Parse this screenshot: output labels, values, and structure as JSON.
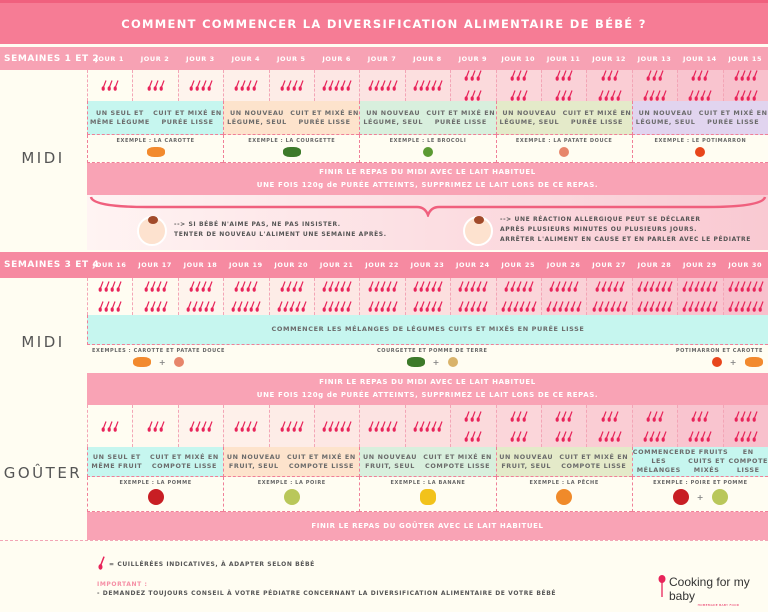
{
  "title": "COMMENT COMMENCER LA DIVERSIFICATION ALIMENTAIRE DE BÉBÉ ?",
  "colors": {
    "title_bg": "#f67c95",
    "header_bg": "#f7a2b4",
    "spoon": "#e8245a",
    "lait_bg": "#f9a3b5"
  },
  "weeks12": {
    "label": "SEMAINES 1 ET 2",
    "days": [
      "JOUR 1",
      "JOUR 2",
      "JOUR 3",
      "JOUR 4",
      "JOUR 5",
      "JOUR 6",
      "JOUR 7",
      "JOUR 8",
      "JOUR 9",
      "JOUR 10",
      "JOUR 11",
      "JOUR 12",
      "JOUR 13",
      "JOUR 14",
      "JOUR 15"
    ],
    "midi": {
      "label": "MIDI",
      "spoons": [
        3,
        3,
        4,
        4,
        4,
        5,
        5,
        5,
        6,
        6,
        6,
        7,
        7,
        7,
        8
      ],
      "steps": [
        {
          "text": "UN SEUL ET MÊME LÉGUME\nCUIT ET MIXÉ EN PURÉE LISSE",
          "example": "EXEMPLE : LA CAROTTE",
          "food": [
            "carrot"
          ],
          "color": "#c6f6ef"
        },
        {
          "text": "UN NOUVEAU LÉGUME, SEUL\nCUIT ET MIXÉ EN PURÉE LISSE",
          "example": "EXEMPLE : LA COURGETTE",
          "food": [
            "zucchini"
          ],
          "color": "#fde3cc"
        },
        {
          "text": "UN NOUVEAU LÉGUME, SEUL\nCUIT ET MIXÉ EN PURÉE LISSE",
          "example": "EXEMPLE : LE BROCOLI",
          "food": [
            "broccoli"
          ],
          "color": "#d8efdd"
        },
        {
          "text": "UN NOUVEAU LÉGUME, SEUL\nCUIT ET MIXÉ EN PURÉE LISSE",
          "example": "EXEMPLE : LA PATATE DOUCE",
          "food": [
            "sweet-potato"
          ],
          "color": "#e4eac9"
        },
        {
          "text": "UN NOUVEAU LÉGUME, SEUL\nCUIT ET MIXÉ EN PURÉE LISSE",
          "example": "EXEMPLE : LE POTIMARRON",
          "food": [
            "pumpkin"
          ],
          "color": "#e1d4ef"
        }
      ],
      "lait": [
        "FINIR LE REPAS DU MIDI AVEC LE LAIT HABITUEL",
        "UNE FOIS 120g de PURÉE ATTEINTS, SUPPRIMEZ LE LAIT LORS DE CE REPAS."
      ]
    },
    "tips": [
      {
        "icon": "sad-baby-icon",
        "lines": [
          "--> SI BÉBÉ N'AIME PAS, NE PAS INSISTER.",
          "TENTER DE NOUVEAU L'ALIMENT UNE SEMAINE APRÈS."
        ]
      },
      {
        "icon": "allergic-baby-icon",
        "lines": [
          "--> UNE RÉACTION ALLERGIQUE PEUT SE DÉCLARER",
          "APRÈS PLUSIEURS MINUTES OU PLUSIEURS JOURS.",
          "ARRÊTER L'ALIMENT EN CAUSE ET EN PARLER AVEC LE PÉDIATRE"
        ]
      }
    ]
  },
  "weeks34": {
    "label": "SEMAINES 3 ET 4",
    "days": [
      "JOUR 16",
      "JOUR 17",
      "JOUR 18",
      "JOUR 19",
      "JOUR 20",
      "JOUR 21",
      "JOUR 22",
      "JOUR 23",
      "JOUR 24",
      "JOUR 25",
      "JOUR 26",
      "JOUR 27",
      "JOUR 28",
      "JOUR 29",
      "JOUR 30"
    ],
    "midi": {
      "label": "MIDI",
      "spoons": [
        8,
        8,
        9,
        9,
        9,
        10,
        10,
        10,
        10,
        11,
        11,
        11,
        12,
        12,
        12
      ],
      "mix_text": "COMMENCER LES MÉLANGES DE LÉGUMES CUITS ET MIXÉS EN PURÉE LISSE",
      "examples": [
        {
          "text": "EXEMPLES : CAROTTE ET PATATE DOUCE",
          "food": [
            "carrot",
            "sweet-potato"
          ]
        },
        {
          "text": "COURGETTE ET POMME DE TERRE",
          "food": [
            "zucchini",
            "potato"
          ]
        },
        {
          "text": "POTIMARRON ET CAROTTE",
          "food": [
            "pumpkin",
            "carrot"
          ]
        }
      ],
      "lait": [
        "FINIR LE REPAS DU MIDI AVEC LE LAIT HABITUEL",
        "UNE FOIS 120g de PURÉE ATTEINTS, SUPPRIMEZ LE LAIT LORS DE CE REPAS."
      ]
    },
    "gouter": {
      "label": "GOÛTER",
      "spoons": [
        3,
        3,
        4,
        4,
        4,
        5,
        5,
        5,
        6,
        6,
        6,
        7,
        7,
        7,
        8
      ],
      "steps": [
        {
          "text": "UN SEUL ET MÊME FRUIT\nCUIT ET MIXÉ EN COMPOTE LISSE",
          "example": "EXEMPLE : LA POMME",
          "food": [
            "apple"
          ],
          "color": "#c6f6ef"
        },
        {
          "text": "UN NOUVEAU FRUIT, SEUL\nCUIT ET MIXÉ EN COMPOTE LISSE",
          "example": "EXEMPLE : LA POIRE",
          "food": [
            "pear"
          ],
          "color": "#fde3cc"
        },
        {
          "text": "UN NOUVEAU FRUIT, SEUL\nCUIT ET MIXÉ EN COMPOTE LISSE",
          "example": "EXEMPLE : LA BANANE",
          "food": [
            "banana"
          ],
          "color": "#d8efdd"
        },
        {
          "text": "UN NOUVEAU FRUIT, SEUL\nCUIT ET MIXÉ EN COMPOTE LISSE",
          "example": "EXEMPLE : LA PÊCHE",
          "food": [
            "peach"
          ],
          "color": "#e4eac9"
        },
        {
          "text": "COMMENCER LES MÉLANGES\nDE FRUITS CUITS ET MIXÉS\nEN COMPOTE LISSE",
          "example": "EXEMPLE : POIRE ET POMME",
          "food": [
            "apple",
            "pear"
          ],
          "color": "#c6f6ef"
        }
      ],
      "lait": [
        "FINIR LE REPAS DU GOÛTER AVEC LE LAIT HABITUEL"
      ]
    }
  },
  "footer": {
    "legend": "= CUILLÉRÉES INDICATIVES, À ADAPTER SELON BÉBÉ",
    "important_label": "IMPORTANT :",
    "important_text": "- DEMANDEZ TOUJOURS CONSEIL À VOTRE PÉDIATRE CONCERNANT LA DIVERSIFICATION ALIMENTAIRE DE VOTRE BÉBÉ",
    "logo": "Cooking for my baby",
    "logo_sub": "HOMEMADE BABY FOOD"
  }
}
